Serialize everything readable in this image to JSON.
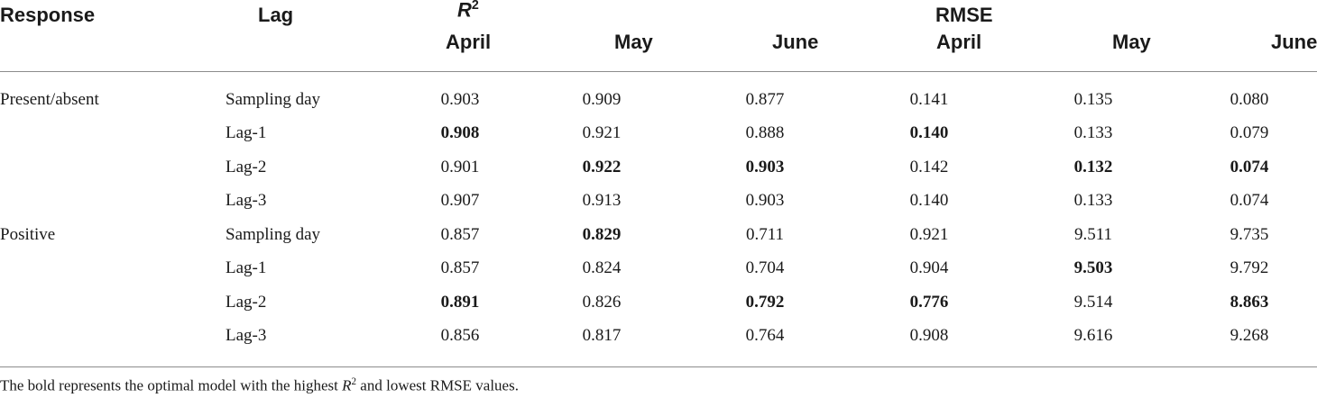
{
  "header": {
    "response": "Response",
    "lag": "Lag",
    "r2_symbol": "R",
    "r2_exp": "2",
    "rmse": "RMSE",
    "months": [
      "April",
      "May",
      "June",
      "April",
      "May",
      "June"
    ]
  },
  "rows": [
    {
      "response": "Present/absent",
      "lag": "Sampling day",
      "vals": [
        "0.903",
        "0.909",
        "0.877",
        "0.141",
        "0.135",
        "0.080"
      ],
      "bold": [
        false,
        false,
        false,
        false,
        false,
        false
      ]
    },
    {
      "response": "",
      "lag": "Lag-1",
      "vals": [
        "0.908",
        "0.921",
        "0.888",
        "0.140",
        "0.133",
        "0.079"
      ],
      "bold": [
        true,
        false,
        false,
        true,
        false,
        false
      ]
    },
    {
      "response": "",
      "lag": "Lag-2",
      "vals": [
        "0.901",
        "0.922",
        "0.903",
        "0.142",
        "0.132",
        "0.074"
      ],
      "bold": [
        false,
        true,
        true,
        false,
        true,
        true
      ]
    },
    {
      "response": "",
      "lag": "Lag-3",
      "vals": [
        "0.907",
        "0.913",
        "0.903",
        "0.140",
        "0.133",
        "0.074"
      ],
      "bold": [
        false,
        false,
        false,
        false,
        false,
        false
      ]
    },
    {
      "response": "Positive",
      "lag": "Sampling day",
      "vals": [
        "0.857",
        "0.829",
        "0.711",
        "0.921",
        "9.511",
        "9.735"
      ],
      "bold": [
        false,
        true,
        false,
        false,
        false,
        false
      ]
    },
    {
      "response": "",
      "lag": "Lag-1",
      "vals": [
        "0.857",
        "0.824",
        "0.704",
        "0.904",
        "9.503",
        "9.792"
      ],
      "bold": [
        false,
        false,
        false,
        false,
        true,
        false
      ]
    },
    {
      "response": "",
      "lag": "Lag-2",
      "vals": [
        "0.891",
        "0.826",
        "0.792",
        "0.776",
        "9.514",
        "8.863"
      ],
      "bold": [
        true,
        false,
        true,
        true,
        false,
        true
      ]
    },
    {
      "response": "",
      "lag": "Lag-3",
      "vals": [
        "0.856",
        "0.817",
        "0.764",
        "0.908",
        "9.616",
        "9.268"
      ],
      "bold": [
        false,
        false,
        false,
        false,
        false,
        false
      ]
    }
  ],
  "note": {
    "before": "The bold represents the optimal model with the highest ",
    "r2_symbol": "R",
    "r2_exp": "2",
    "after": " and lowest RMSE values."
  }
}
